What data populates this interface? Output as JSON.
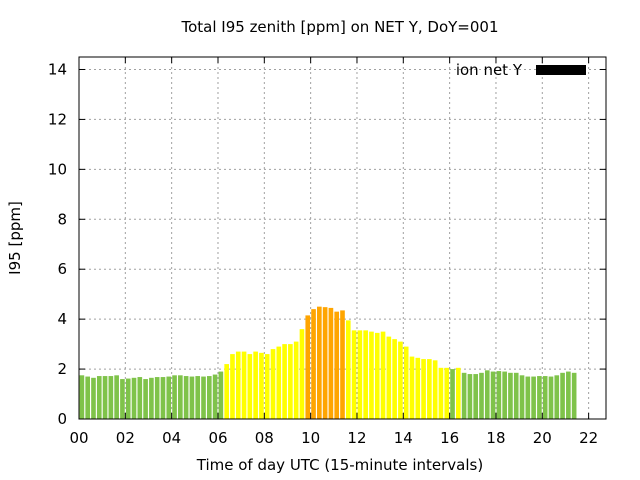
{
  "chart_data": {
    "type": "bar",
    "title": "Total I95 zenith [ppm] on NET Y, DoY=001",
    "xlabel": "Time of day UTC (15-minute intervals)",
    "ylabel": "I95 [ppm]",
    "xlim": [
      0,
      22.75
    ],
    "ylim": [
      0,
      14.5
    ],
    "x_ticks": [
      0,
      2,
      4,
      6,
      8,
      10,
      12,
      14,
      16,
      18,
      20,
      22
    ],
    "x_tick_labels": [
      "00",
      "02",
      "04",
      "06",
      "08",
      "10",
      "12",
      "14",
      "16",
      "18",
      "20",
      "22"
    ],
    "y_ticks": [
      0,
      2,
      4,
      6,
      8,
      10,
      12,
      14
    ],
    "y_tick_labels": [
      "0",
      "2",
      "4",
      "6",
      "8",
      "10",
      "12",
      "14"
    ],
    "grid": true,
    "legend": {
      "label": "ion net Y",
      "color": "#000000",
      "placement": "top-right"
    },
    "level_colors": {
      "low": "#7fc34a",
      "medium": "#ffff00",
      "high": "#ffa500"
    },
    "series": [
      {
        "values": [
          1.75,
          1.7,
          1.65,
          1.72,
          1.72,
          1.72,
          1.75,
          1.6,
          1.62,
          1.65,
          1.68,
          1.6,
          1.65,
          1.68,
          1.68,
          1.7,
          1.75,
          1.75,
          1.72,
          1.7,
          1.72,
          1.7,
          1.72,
          1.78,
          1.9,
          2.2,
          2.6,
          2.7,
          2.7,
          2.6,
          2.7,
          2.65,
          2.6,
          2.8,
          2.9,
          3.0,
          3.0,
          3.1,
          3.6,
          4.15,
          4.4,
          4.5,
          4.48,
          4.45,
          4.3,
          4.35,
          3.95,
          3.55,
          3.55,
          3.55,
          3.5,
          3.45,
          3.5,
          3.3,
          3.2,
          3.1,
          2.9,
          2.5,
          2.45,
          2.4,
          2.4,
          2.35,
          2.05,
          2.05,
          2.0,
          2.05,
          1.85,
          1.8,
          1.8,
          1.85,
          1.95,
          1.9,
          1.92,
          1.9,
          1.85,
          1.85,
          1.75,
          1.7,
          1.7,
          1.72,
          1.72,
          1.7,
          1.75,
          1.85,
          1.9,
          1.85
        ],
        "levels": [
          "low",
          "low",
          "low",
          "low",
          "low",
          "low",
          "low",
          "low",
          "low",
          "low",
          "low",
          "low",
          "low",
          "low",
          "low",
          "low",
          "low",
          "low",
          "low",
          "low",
          "low",
          "low",
          "low",
          "low",
          "low",
          "medium",
          "medium",
          "medium",
          "medium",
          "medium",
          "medium",
          "medium",
          "medium",
          "medium",
          "medium",
          "medium",
          "medium",
          "medium",
          "medium",
          "high",
          "high",
          "high",
          "high",
          "high",
          "high",
          "high",
          "medium",
          "medium",
          "medium",
          "medium",
          "medium",
          "medium",
          "medium",
          "medium",
          "medium",
          "medium",
          "medium",
          "medium",
          "medium",
          "medium",
          "medium",
          "medium",
          "medium",
          "medium",
          "low",
          "medium",
          "low",
          "low",
          "low",
          "low",
          "low",
          "low",
          "low",
          "low",
          "low",
          "low",
          "low",
          "low",
          "low",
          "low",
          "low",
          "low",
          "low",
          "low",
          "low",
          "low"
        ]
      }
    ]
  }
}
